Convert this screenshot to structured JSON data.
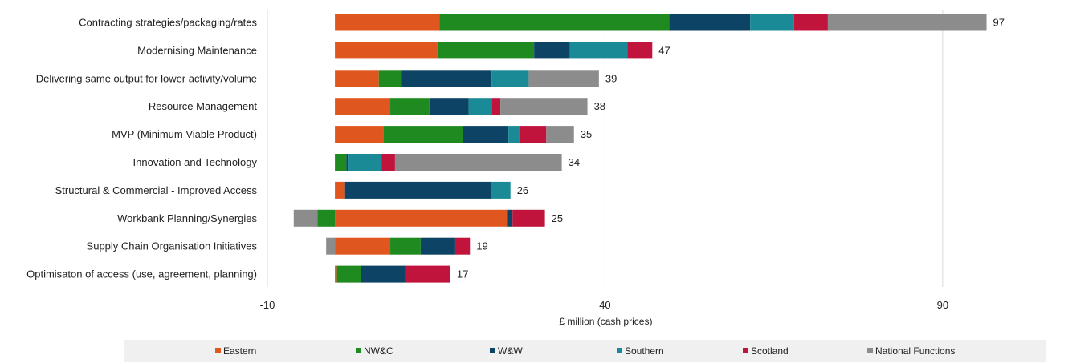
{
  "chart_data": {
    "type": "bar",
    "orientation": "horizontal",
    "stacked": true,
    "xlabel": "£ million (cash prices)",
    "xlim": [
      -10,
      105
    ],
    "xticks": [
      -10,
      40,
      90
    ],
    "grid": true,
    "legend_position": "bottom",
    "categories": [
      "Contracting strategies/packaging/rates",
      "Modernising Maintenance",
      "Delivering same output for lower activity/volume",
      "Resource Management",
      "MVP (Minimum Viable Product)",
      "Innovation and Technology",
      "Structural & Commercial - Improved Access",
      "Workbank Planning/Synergies",
      "Supply Chain Organisation Initiatives",
      "Optimisaton of access (use, agreement, planning)"
    ],
    "totals": [
      97,
      47,
      39,
      38,
      35,
      34,
      26,
      25,
      19,
      17
    ],
    "series": [
      {
        "name": "Eastern",
        "color": "#e0561f",
        "values": [
          15.5,
          15.2,
          6.5,
          8.2,
          7.2,
          0,
          1.5,
          25.5,
          8.2,
          0.3
        ]
      },
      {
        "name": "NW&C",
        "color": "#1f8a1f",
        "values": [
          34,
          14.3,
          3.3,
          5.8,
          11.7,
          1.7,
          0,
          -2.6,
          4.5,
          3.6
        ]
      },
      {
        "name": "W&W",
        "color": "#0d4466",
        "values": [
          12,
          5.3,
          13.4,
          5.8,
          6.8,
          0.2,
          21.6,
          0.8,
          5,
          6.5
        ]
      },
      {
        "name": "Southern",
        "color": "#1a8a96",
        "values": [
          6.5,
          8.5,
          5.5,
          3.5,
          1.6,
          5,
          2.9,
          0,
          0,
          0
        ]
      },
      {
        "name": "Scotland",
        "color": "#c0143c",
        "values": [
          5,
          3.7,
          0,
          1.2,
          4,
          2,
          0,
          4.8,
          2.3,
          6.7
        ]
      },
      {
        "name": "National Functions",
        "color": "#8c8c8c",
        "values": [
          23.5,
          0,
          10.4,
          12.9,
          4.1,
          24.7,
          0,
          -3.5,
          -1.3,
          0
        ]
      }
    ]
  }
}
